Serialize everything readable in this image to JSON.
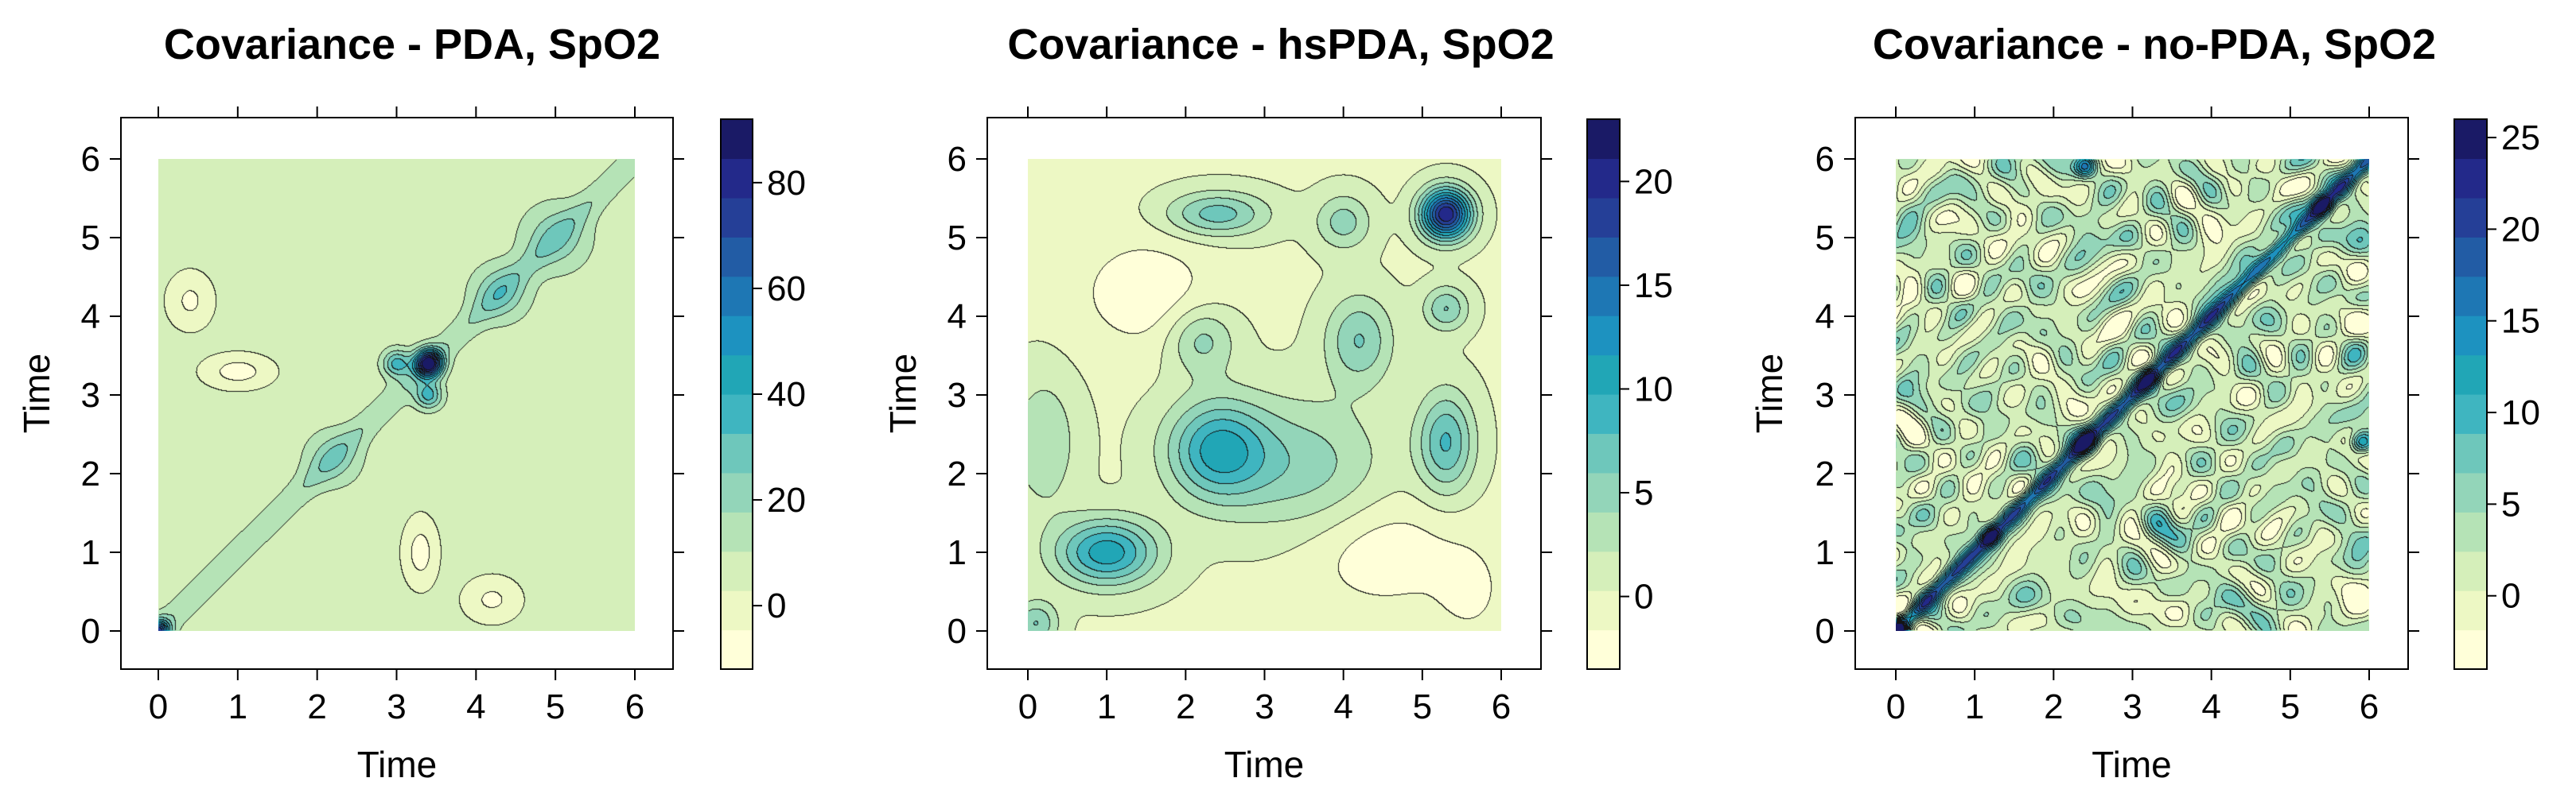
{
  "chart_data": [
    {
      "type": "heatmap",
      "title": "Covariance - PDA, SpO2",
      "xlabel": "Time",
      "ylabel": "Time",
      "x_ticks": [
        0,
        1,
        2,
        3,
        4,
        5,
        6
      ],
      "y_ticks": [
        0,
        1,
        2,
        3,
        4,
        5,
        6
      ],
      "xlim": [
        0,
        6
      ],
      "ylim": [
        0,
        6
      ],
      "colorbar": {
        "ticks": [
          0,
          20,
          40,
          60,
          80
        ],
        "range": [
          -12,
          92
        ]
      },
      "surface": {
        "base": 6,
        "peaks": [
          {
            "x": 3.4,
            "y": 3.4,
            "sx": 0.12,
            "sy": 0.12,
            "a": 86
          },
          {
            "x": 3.0,
            "y": 3.4,
            "sx": 0.12,
            "sy": 0.12,
            "a": 30
          },
          {
            "x": 3.4,
            "y": 3.0,
            "sx": 0.12,
            "sy": 0.12,
            "a": 30
          },
          {
            "x": 4.3,
            "y": 4.3,
            "sx": 0.25,
            "sy": 0.25,
            "a": 18
          },
          {
            "x": 5.0,
            "y": 5.0,
            "sx": 0.3,
            "sy": 0.3,
            "a": 16
          },
          {
            "x": 2.2,
            "y": 2.2,
            "sx": 0.25,
            "sy": 0.25,
            "a": 14
          },
          {
            "x": 0.0,
            "y": 0.0,
            "sx": 0.1,
            "sy": 0.1,
            "a": 60
          },
          {
            "x": 1.0,
            "y": 3.3,
            "sx": 0.3,
            "sy": 0.15,
            "a": -14
          },
          {
            "x": 3.3,
            "y": 1.0,
            "sx": 0.15,
            "sy": 0.3,
            "a": -14
          },
          {
            "x": 0.4,
            "y": 4.2,
            "sx": 0.2,
            "sy": 0.25,
            "a": -12
          },
          {
            "x": 4.2,
            "y": 0.4,
            "sx": 0.25,
            "sy": 0.2,
            "a": -12
          }
        ],
        "ridge": {
          "a": 10,
          "s": 0.12,
          "from": 0,
          "to": 6
        }
      }
    },
    {
      "type": "heatmap",
      "title": "Covariance - hsPDA, SpO2",
      "xlabel": "Time",
      "ylabel": "Time",
      "x_ticks": [
        0,
        1,
        2,
        3,
        4,
        5,
        6
      ],
      "y_ticks": [
        0,
        1,
        2,
        3,
        4,
        5,
        6
      ],
      "xlim": [
        0,
        6
      ],
      "ylim": [
        0,
        6
      ],
      "colorbar": {
        "ticks": [
          0,
          5,
          10,
          15,
          20
        ],
        "range": [
          -3.5,
          23
        ]
      },
      "surface": {
        "base": 0,
        "peaks": [
          {
            "x": 5.3,
            "y": 5.3,
            "sx": 0.22,
            "sy": 0.22,
            "a": 21
          },
          {
            "x": 1.0,
            "y": 1.0,
            "sx": 0.45,
            "sy": 0.3,
            "a": 11
          },
          {
            "x": 2.4,
            "y": 2.3,
            "sx": 0.45,
            "sy": 0.45,
            "a": 10
          },
          {
            "x": 5.3,
            "y": 2.4,
            "sx": 0.25,
            "sy": 0.45,
            "a": 8
          },
          {
            "x": 2.4,
            "y": 5.3,
            "sx": 0.45,
            "sy": 0.2,
            "a": 7
          },
          {
            "x": 4.2,
            "y": 3.7,
            "sx": 0.3,
            "sy": 0.4,
            "a": 6
          },
          {
            "x": 3.5,
            "y": 2.1,
            "sx": 0.7,
            "sy": 0.6,
            "a": 5
          },
          {
            "x": 2.2,
            "y": 3.7,
            "sx": 0.3,
            "sy": 0.3,
            "a": 5
          },
          {
            "x": 4.0,
            "y": 5.2,
            "sx": 0.25,
            "sy": 0.25,
            "a": 5
          },
          {
            "x": 5.3,
            "y": 4.1,
            "sx": 0.2,
            "sy": 0.2,
            "a": 6
          },
          {
            "x": 0.2,
            "y": 2.4,
            "sx": 0.3,
            "sy": 0.6,
            "a": 4
          },
          {
            "x": 0.1,
            "y": 0.1,
            "sx": 0.2,
            "sy": 0.2,
            "a": 6
          },
          {
            "x": 1.5,
            "y": 4.3,
            "sx": 0.6,
            "sy": 0.5,
            "a": -3
          },
          {
            "x": 4.5,
            "y": 1.0,
            "sx": 0.7,
            "sy": 0.5,
            "a": -3
          },
          {
            "x": 5.6,
            "y": 0.5,
            "sx": 0.3,
            "sy": 0.4,
            "a": -2
          }
        ]
      }
    },
    {
      "type": "heatmap",
      "title": "Covariance - no-PDA, SpO2",
      "xlabel": "Time",
      "ylabel": "Time",
      "x_ticks": [
        0,
        1,
        2,
        3,
        4,
        5,
        6
      ],
      "y_ticks": [
        0,
        1,
        2,
        3,
        4,
        5,
        6
      ],
      "xlim": [
        0,
        6
      ],
      "ylim": [
        0,
        6
      ],
      "colorbar": {
        "ticks": [
          0,
          5,
          10,
          15,
          20,
          25
        ],
        "range": [
          -4,
          26
        ]
      },
      "surface": {
        "base": 2,
        "peaks": [
          {
            "x": 5.4,
            "y": 5.4,
            "sx": 0.1,
            "sy": 0.1,
            "a": 18
          },
          {
            "x": 2.4,
            "y": 2.4,
            "sx": 0.1,
            "sy": 0.1,
            "a": 14
          },
          {
            "x": 1.2,
            "y": 1.2,
            "sx": 0.08,
            "sy": 0.08,
            "a": 12
          },
          {
            "x": 3.2,
            "y": 3.2,
            "sx": 0.1,
            "sy": 0.1,
            "a": 12
          },
          {
            "x": 5.9,
            "y": 2.4,
            "sx": 0.1,
            "sy": 0.1,
            "a": 14
          },
          {
            "x": 2.4,
            "y": 5.9,
            "sx": 0.1,
            "sy": 0.1,
            "a": 14
          },
          {
            "x": 0.0,
            "y": 0.0,
            "sx": 0.1,
            "sy": 0.1,
            "a": 14
          }
        ],
        "ridge": {
          "a": 16,
          "s": 0.07,
          "from": 0,
          "to": 6
        },
        "noise": {
          "a": 4.5,
          "seed": 7
        }
      }
    }
  ]
}
